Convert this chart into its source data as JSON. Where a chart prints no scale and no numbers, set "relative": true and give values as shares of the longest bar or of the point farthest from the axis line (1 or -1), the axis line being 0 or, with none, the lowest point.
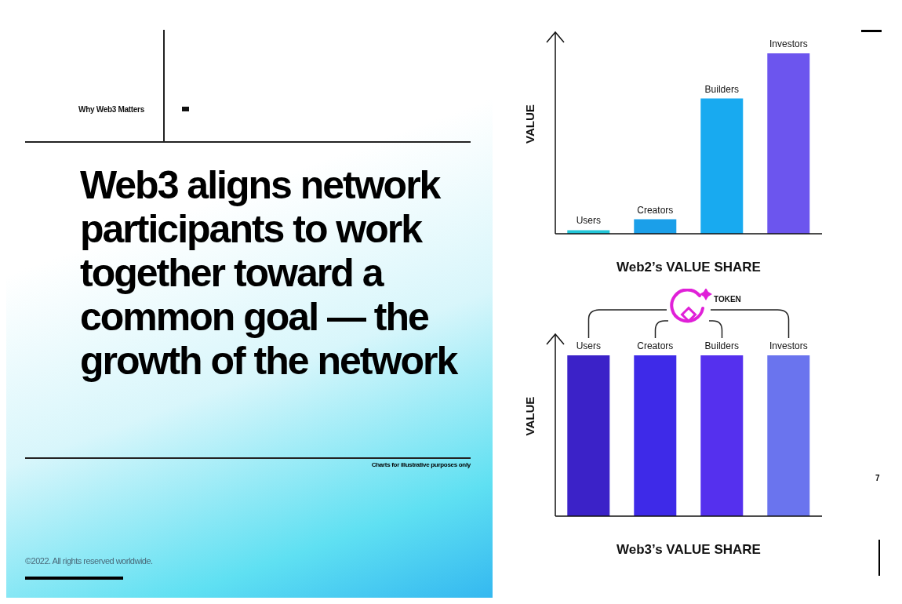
{
  "chart_data": [
    {
      "type": "other",
      "title": "Web3 aligns network participants to work together toward a common goal — the growth of the network",
      "annotations": [
        "Why Web3 Matters",
        "Charts for illustrative purposes only",
        "©2022. All rights reserved worldwide.",
        "7"
      ]
    },
    {
      "type": "bar",
      "relative": true,
      "categories": [
        "Users",
        "Creators",
        "Builders",
        "Investors"
      ],
      "values": [
        0.02,
        0.08,
        0.75,
        1
      ],
      "colors": [
        "#22c6d8",
        "#1b9fe9",
        "#18aaf0",
        "#6c55ee"
      ],
      "ylabel": "VALUE",
      "xlabel": "Web2’s VALUE SHARE",
      "grid": false,
      "legend": false
    },
    {
      "type": "bar",
      "relative": true,
      "categories": [
        "Users",
        "Creators",
        "Builders",
        "Investors"
      ],
      "values": [
        1,
        1,
        1,
        1
      ],
      "colors": [
        "#3b22c8",
        "#3e2ae8",
        "#5530ee",
        "#6a74ee"
      ],
      "ylabel": "VALUE",
      "xlabel": "Web3’s VALUE SHARE",
      "grid": false,
      "legend": false,
      "annotations": [
        "TOKEN"
      ]
    }
  ]
}
